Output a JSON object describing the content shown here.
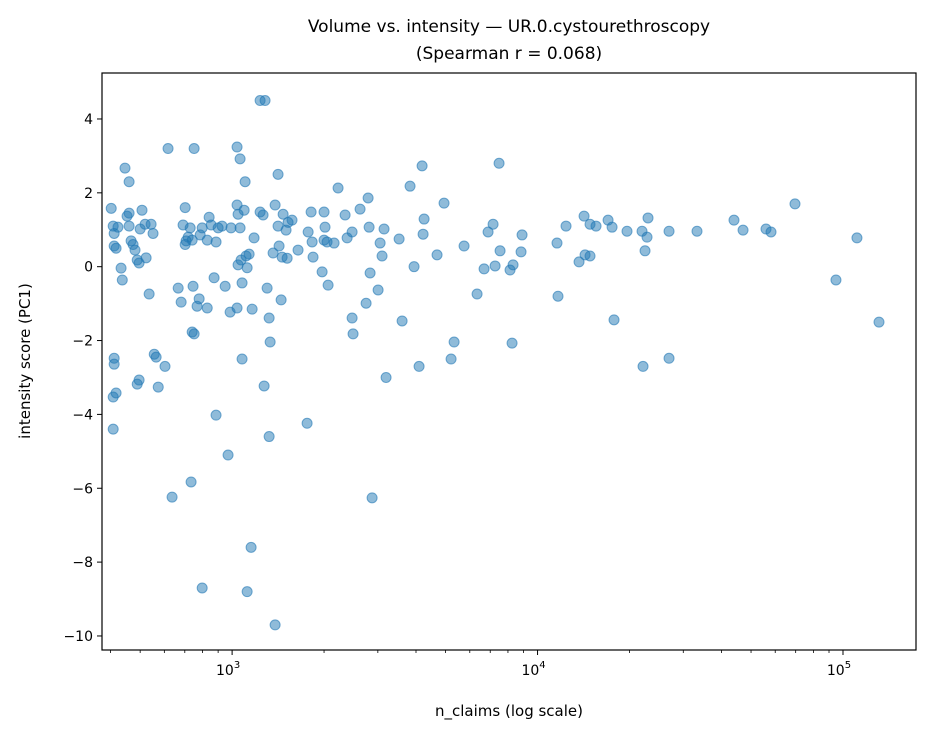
{
  "chart_data": {
    "type": "scatter",
    "title": "Volume vs. intensity — UR.0.cystourethroscopy",
    "subtitle": "(Spearman r = 0.068)",
    "xlabel": "n_claims (log scale)",
    "ylabel": "intensity score (PC1)",
    "xscale": "log",
    "xlim": [
      375,
      173400
    ],
    "ylim": [
      -10.38,
      5.245
    ],
    "xticks": [
      1000,
      10000,
      100000
    ],
    "xtick_labels": [
      {
        "base": "10",
        "exp": "3"
      },
      {
        "base": "10",
        "exp": "4"
      },
      {
        "base": "10",
        "exp": "5"
      }
    ],
    "yticks": [
      -10,
      -8,
      -6,
      -4,
      -2,
      0,
      2,
      4
    ],
    "ytick_labels": [
      "−10",
      "−8",
      "−6",
      "−4",
      "−2",
      "0",
      "2",
      "4"
    ],
    "grid": false,
    "marker_color": "#1f77b4",
    "points": [
      [
        402,
        1.58
      ],
      [
        408,
        1.1
      ],
      [
        411,
        0.56
      ],
      [
        411,
        0.9
      ],
      [
        417,
        0.5
      ],
      [
        411,
        -2.48
      ],
      [
        411,
        -2.64
      ],
      [
        408,
        -3.53
      ],
      [
        417,
        -3.42
      ],
      [
        408,
        -4.4
      ],
      [
        423,
        1.07
      ],
      [
        433,
        -0.04
      ],
      [
        437,
        -0.36
      ],
      [
        446,
        2.67
      ],
      [
        453,
        1.37
      ],
      [
        460,
        2.3
      ],
      [
        460,
        1.45
      ],
      [
        460,
        1.1
      ],
      [
        467,
        0.7
      ],
      [
        474,
        0.6
      ],
      [
        481,
        0.45
      ],
      [
        489,
        0.18
      ],
      [
        496,
        0.1
      ],
      [
        496,
        -3.07
      ],
      [
        489,
        -3.18
      ],
      [
        500,
        1.02
      ],
      [
        507,
        1.53
      ],
      [
        519,
        1.15
      ],
      [
        523,
        0.24
      ],
      [
        535,
        -0.74
      ],
      [
        543,
        1.15
      ],
      [
        551,
        0.9
      ],
      [
        556,
        -2.37
      ],
      [
        564,
        -2.45
      ],
      [
        573,
        -3.26
      ],
      [
        603,
        -2.7
      ],
      [
        617,
        3.2
      ],
      [
        636,
        -6.24
      ],
      [
        666,
        -0.58
      ],
      [
        681,
        -0.96
      ],
      [
        691,
        1.13
      ],
      [
        702,
        1.6
      ],
      [
        707,
        0.7
      ],
      [
        702,
        0.6
      ],
      [
        718,
        0.8
      ],
      [
        729,
        1.05
      ],
      [
        740,
        -1.77
      ],
      [
        740,
        0.72
      ],
      [
        751,
        3.2
      ],
      [
        734,
        -5.83
      ],
      [
        751,
        -1.82
      ],
      [
        768,
        -1.07
      ],
      [
        745,
        -0.53
      ],
      [
        780,
        -0.87
      ],
      [
        786,
        0.86
      ],
      [
        798,
        1.05
      ],
      [
        829,
        -1.12
      ],
      [
        829,
        0.72
      ],
      [
        841,
        1.34
      ],
      [
        854,
        1.13
      ],
      [
        873,
        -0.3
      ],
      [
        886,
        -4.02
      ],
      [
        886,
        0.67
      ],
      [
        900,
        1.05
      ],
      [
        927,
        1.1
      ],
      [
        949,
        -0.53
      ],
      [
        970,
        -5.1
      ],
      [
        985,
        -1.23
      ],
      [
        992,
        1.05
      ],
      [
        1038,
        3.24
      ],
      [
        1038,
        1.67
      ],
      [
        1038,
        -1.12
      ],
      [
        1046,
        0.05
      ],
      [
        1046,
        1.42
      ],
      [
        1062,
        2.92
      ],
      [
        1062,
        1.05
      ],
      [
        1070,
        0.18
      ],
      [
        1078,
        -0.44
      ],
      [
        1078,
        -2.5
      ],
      [
        1095,
        1.53
      ],
      [
        1103,
        2.3
      ],
      [
        1111,
        0.29
      ],
      [
        1120,
        -0.03
      ],
      [
        1137,
        0.34
      ],
      [
        1163,
        -1.15
      ],
      [
        1180,
        0.78
      ],
      [
        1154,
        -7.6
      ],
      [
        1120,
        -8.8
      ],
      [
        798,
        -8.7
      ],
      [
        1235,
        4.5
      ],
      [
        1282,
        4.5
      ],
      [
        1263,
        1.4
      ],
      [
        1235,
        1.48
      ],
      [
        1273,
        -3.23
      ],
      [
        1302,
        -0.58
      ],
      [
        1322,
        -1.39
      ],
      [
        1332,
        -2.04
      ],
      [
        1322,
        -4.6
      ],
      [
        1362,
        0.37
      ],
      [
        1383,
        -9.7
      ],
      [
        1383,
        1.67
      ],
      [
        1414,
        2.5
      ],
      [
        1414,
        1.1
      ],
      [
        1425,
        0.56
      ],
      [
        1447,
        -0.9
      ],
      [
        1458,
        0.26
      ],
      [
        1469,
        1.42
      ],
      [
        1502,
        0.99
      ],
      [
        1514,
        0.23
      ],
      [
        1525,
        1.2
      ],
      [
        1571,
        1.26
      ],
      [
        1644,
        0.45
      ],
      [
        1760,
        -4.24
      ],
      [
        1774,
        0.94
      ],
      [
        1814,
        1.48
      ],
      [
        1828,
        0.67
      ],
      [
        1841,
        0.26
      ],
      [
        1971,
        -0.14
      ],
      [
        2000,
        1.48
      ],
      [
        2000,
        0.72
      ],
      [
        2015,
        1.07
      ],
      [
        2046,
        0.67
      ],
      [
        2062,
        -0.5
      ],
      [
        2157,
        0.64
      ],
      [
        2223,
        2.13
      ],
      [
        2344,
        1.4
      ],
      [
        2380,
        0.78
      ],
      [
        2471,
        0.94
      ],
      [
        2471,
        -1.39
      ],
      [
        2489,
        -1.82
      ],
      [
        2624,
        1.56
      ],
      [
        2746,
        -0.99
      ],
      [
        2788,
        1.86
      ],
      [
        2809,
        1.07
      ],
      [
        2830,
        -0.17
      ],
      [
        2873,
        -6.26
      ],
      [
        3006,
        -0.63
      ],
      [
        3052,
        0.64
      ],
      [
        3097,
        0.29
      ],
      [
        3144,
        1.02
      ],
      [
        3192,
        -3.0
      ],
      [
        3522,
        0.75
      ],
      [
        3602,
        -1.47
      ],
      [
        3825,
        2.18
      ],
      [
        3942,
        0.0
      ],
      [
        4094,
        -2.7
      ],
      [
        4188,
        2.73
      ],
      [
        4220,
        0.88
      ],
      [
        4252,
        1.29
      ],
      [
        4688,
        0.32
      ],
      [
        4942,
        1.72
      ],
      [
        5211,
        -2.5
      ],
      [
        5331,
        -2.04
      ],
      [
        5747,
        0.56
      ],
      [
        6339,
        -0.74
      ],
      [
        6683,
        -0.06
      ],
      [
        6887,
        0.94
      ],
      [
        7152,
        1.15
      ],
      [
        7261,
        0.02
      ],
      [
        7482,
        2.8
      ],
      [
        7539,
        0.43
      ],
      [
        8128,
        -0.09
      ],
      [
        8252,
        -2.07
      ],
      [
        8314,
        0.05
      ],
      [
        8831,
        0.4
      ],
      [
        8898,
        0.86
      ],
      [
        11580,
        0.64
      ],
      [
        11668,
        -0.8
      ],
      [
        12396,
        1.1
      ],
      [
        13673,
        0.13
      ],
      [
        14200,
        1.37
      ],
      [
        14307,
        0.32
      ],
      [
        14854,
        1.15
      ],
      [
        14854,
        0.29
      ],
      [
        15542,
        1.1
      ],
      [
        17018,
        1.26
      ],
      [
        17539,
        1.07
      ],
      [
        17800,
        -1.44
      ],
      [
        19630,
        0.96
      ],
      [
        21985,
        0.96
      ],
      [
        22150,
        -2.7
      ],
      [
        22486,
        0.43
      ],
      [
        22827,
        0.8
      ],
      [
        22998,
        1.32
      ],
      [
        26947,
        -2.48
      ],
      [
        26947,
        0.96
      ],
      [
        33271,
        0.96
      ],
      [
        43971,
        1.26
      ],
      [
        47075,
        0.99
      ],
      [
        55976,
        1.02
      ],
      [
        58124,
        0.94
      ],
      [
        69642,
        1.7
      ],
      [
        94844,
        -0.36
      ],
      [
        111110,
        0.78
      ],
      [
        131200,
        -1.5
      ]
    ]
  }
}
